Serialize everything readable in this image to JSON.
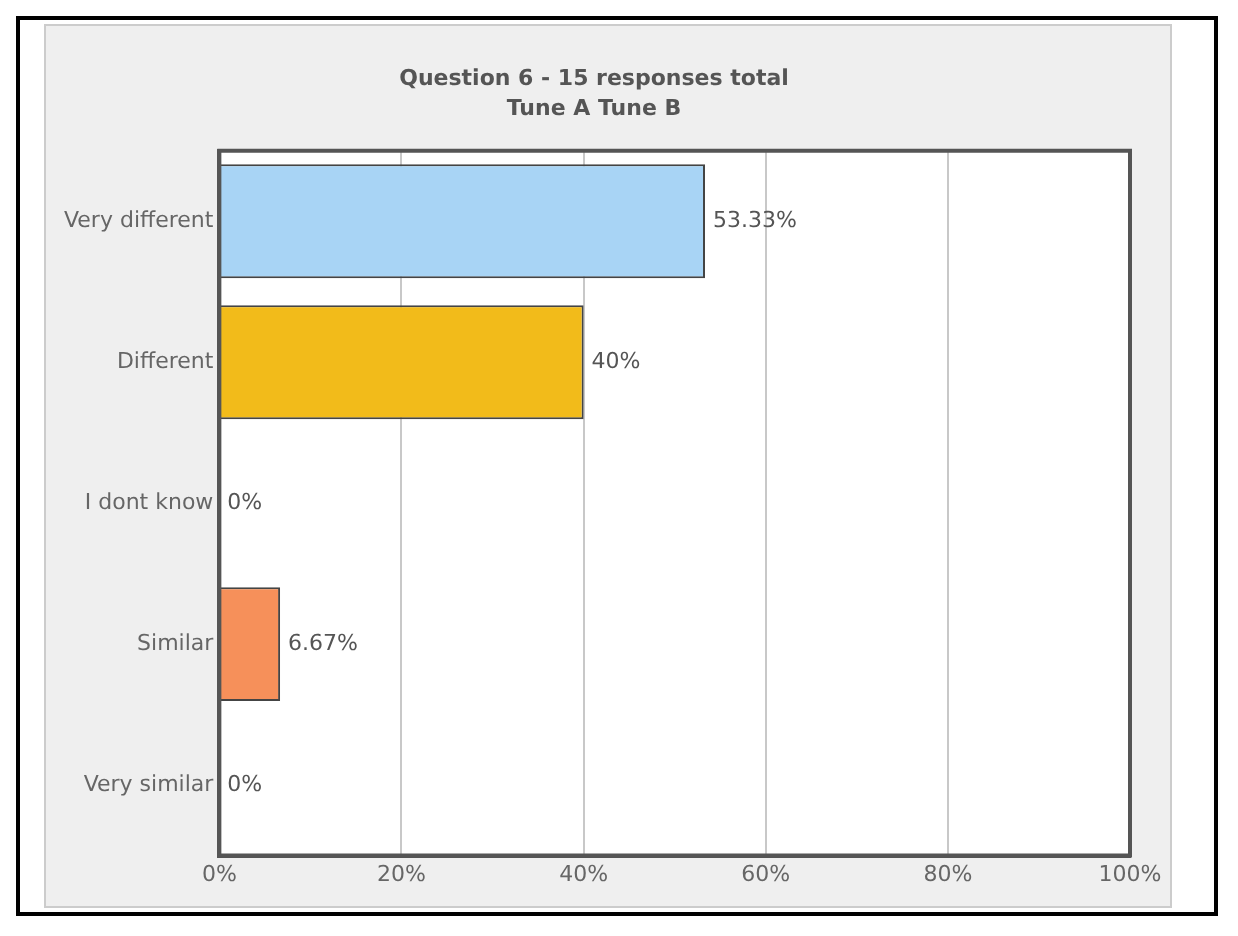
{
  "chart_data": {
    "type": "bar",
    "orientation": "horizontal",
    "title": "Question 6 - 15 responses total",
    "subtitle": "Tune A Tune B",
    "categories": [
      "Very different",
      "Different",
      "I dont know",
      "Similar",
      "Very similar"
    ],
    "values": [
      53.33,
      40,
      0,
      6.67,
      0
    ],
    "colors": [
      "#a8d4f5",
      "#f2bb1a",
      null,
      "#f6905a",
      null
    ],
    "value_labels": [
      "53.33%",
      "40%",
      "0%",
      "6.67%",
      "0%"
    ],
    "xlim": [
      0,
      100
    ],
    "xticks": [
      {
        "value": 0,
        "label": "0%"
      },
      {
        "value": 20,
        "label": "20%"
      },
      {
        "value": 40,
        "label": "40%"
      },
      {
        "value": 60,
        "label": "60%"
      },
      {
        "value": 80,
        "label": "80%"
      },
      {
        "value": 100,
        "label": "100%"
      }
    ],
    "grid": "x",
    "legend": false
  }
}
